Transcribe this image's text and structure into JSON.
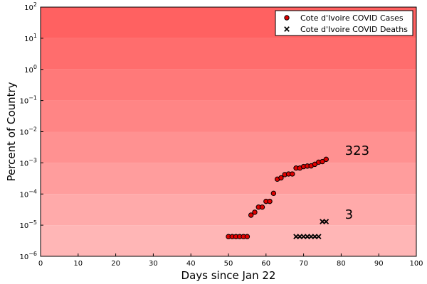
{
  "chart_data": {
    "type": "scatter",
    "xlabel": "Days since Jan 22",
    "ylabel": "Percent of Country",
    "xlim": [
      0,
      100
    ],
    "ylim": [
      1e-06,
      100
    ],
    "yscale": "log",
    "grid": false,
    "legend_position": "top-right",
    "x_ticks": [
      "0",
      "10",
      "20",
      "30",
      "40",
      "50",
      "60",
      "70",
      "80",
      "90",
      "100"
    ],
    "y_ticks": [
      {
        "value": 1e-06,
        "base": "10",
        "exp": "−6"
      },
      {
        "value": 1e-05,
        "base": "10",
        "exp": "−5"
      },
      {
        "value": 0.0001,
        "base": "10",
        "exp": "−4"
      },
      {
        "value": 0.001,
        "base": "10",
        "exp": "−3"
      },
      {
        "value": 0.01,
        "base": "10",
        "exp": "−2"
      },
      {
        "value": 0.1,
        "base": "10",
        "exp": "−1"
      },
      {
        "value": 1,
        "base": "10",
        "exp": "0"
      },
      {
        "value": 10,
        "base": "10",
        "exp": "1"
      },
      {
        "value": 100,
        "base": "10",
        "exp": "2"
      }
    ],
    "background_colors": [
      "#ffb6b6",
      "#ffaaaa",
      "#ff9d9d",
      "#ff9191",
      "#ff8585",
      "#ff7979",
      "#ff6d6d",
      "#ff6161"
    ],
    "series": [
      {
        "name": "Cote d'Ivoire COVID Cases",
        "marker": "circle",
        "color": "#e00000",
        "x": [
          50,
          51,
          52,
          53,
          54,
          55,
          56,
          57,
          58,
          59,
          60,
          61,
          62,
          63,
          64,
          65,
          66,
          67,
          68,
          69,
          70,
          71,
          72,
          73,
          74,
          75,
          76
        ],
        "y": [
          4.3e-06,
          4.3e-06,
          4.3e-06,
          4.3e-06,
          4.3e-06,
          4.3e-06,
          2.1e-05,
          2.6e-05,
          3.8e-05,
          3.8e-05,
          5.8e-05,
          5.8e-05,
          0.000105,
          0.0003,
          0.00033,
          0.00042,
          0.00044,
          0.00044,
          0.00068,
          0.00068,
          0.00076,
          0.00079,
          0.0008,
          0.0009,
          0.00105,
          0.0011,
          0.0013
        ]
      },
      {
        "name": "Cote d'Ivoire COVID Deaths",
        "marker": "x",
        "color": "#000000",
        "x": [
          68,
          69,
          70,
          71,
          72,
          73,
          74,
          75,
          76
        ],
        "y": [
          4.3e-06,
          4.3e-06,
          4.3e-06,
          4.3e-06,
          4.3e-06,
          4.3e-06,
          4.3e-06,
          1.3e-05,
          1.3e-05
        ]
      }
    ],
    "annotations": [
      {
        "text": "323",
        "x": 81,
        "y": 0.0025
      },
      {
        "text": "3",
        "x": 81,
        "y": 2.2e-05
      }
    ]
  }
}
